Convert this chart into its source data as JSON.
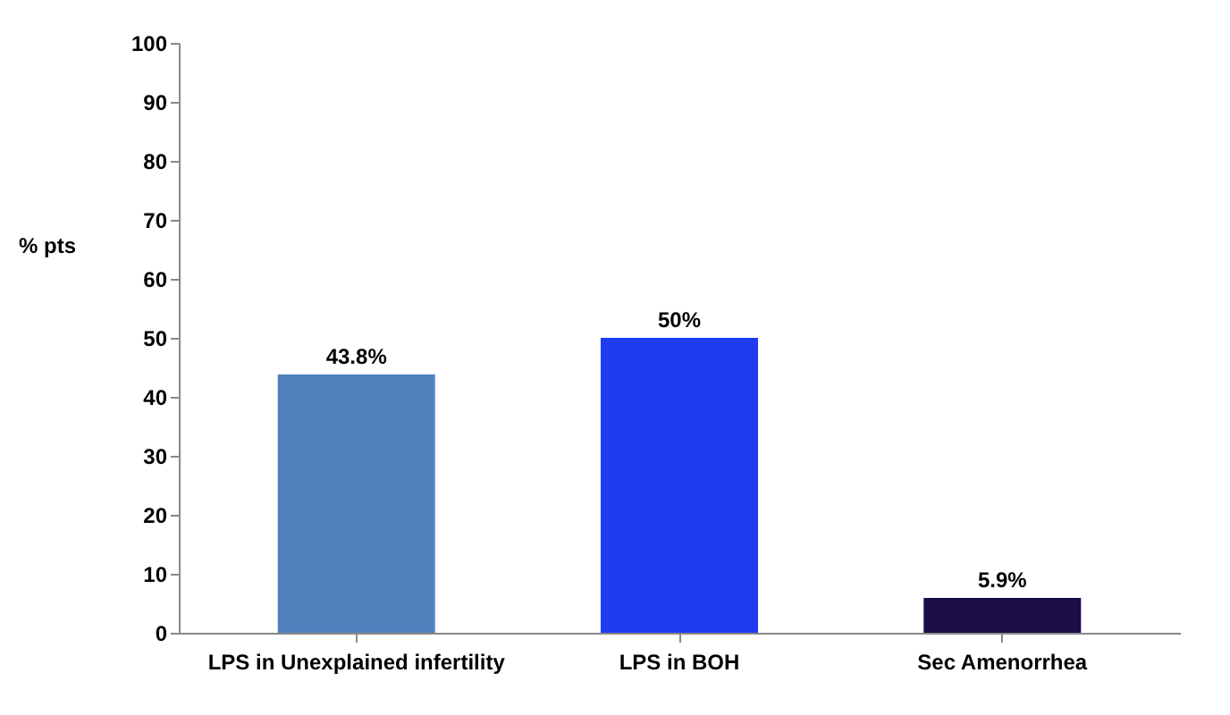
{
  "chart_data": {
    "type": "bar",
    "categories": [
      "LPS in Unexplained infertility",
      "LPS in BOH",
      "Sec Amenorrhea"
    ],
    "values": [
      43.8,
      50,
      5.9
    ],
    "colors": [
      "#4f81bd",
      "#1f3cf0",
      "#1c0c48"
    ],
    "value_labels": [
      "43.8%",
      "50%",
      "5.9%"
    ],
    "ylabel": "% pts",
    "ylim": [
      0,
      100
    ],
    "yticks": [
      0,
      10,
      20,
      30,
      40,
      50,
      60,
      70,
      80,
      90,
      100
    ],
    "grid": false
  }
}
